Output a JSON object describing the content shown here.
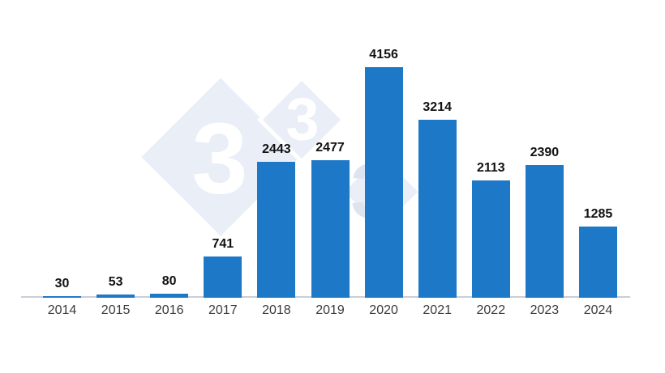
{
  "watermark": {
    "digit": "3",
    "description": "333 diamond logo watermark",
    "diamond_fill": "#e9eef7",
    "digit_color_light": "#ffffff",
    "digit_color_shaded": "#dde4f0"
  },
  "colors": {
    "background": "#ffffff",
    "bar": "#1e78c8",
    "axis_line": "#c9ced6",
    "value_label": "#111111",
    "tick_label": "#3b3b3b"
  },
  "chart_data": {
    "type": "bar",
    "categories": [
      "2014",
      "2015",
      "2016",
      "2017",
      "2018",
      "2019",
      "2020",
      "2021",
      "2022",
      "2023",
      "2024"
    ],
    "values": [
      30,
      53,
      80,
      741,
      2443,
      2477,
      4156,
      3214,
      2113,
      2390,
      1285
    ],
    "title": "",
    "xlabel": "",
    "ylabel": "",
    "ylim": [
      0,
      4156
    ],
    "grid": false,
    "legend": false,
    "value_labels_shown": true,
    "bar_color": "#1e78c8"
  }
}
